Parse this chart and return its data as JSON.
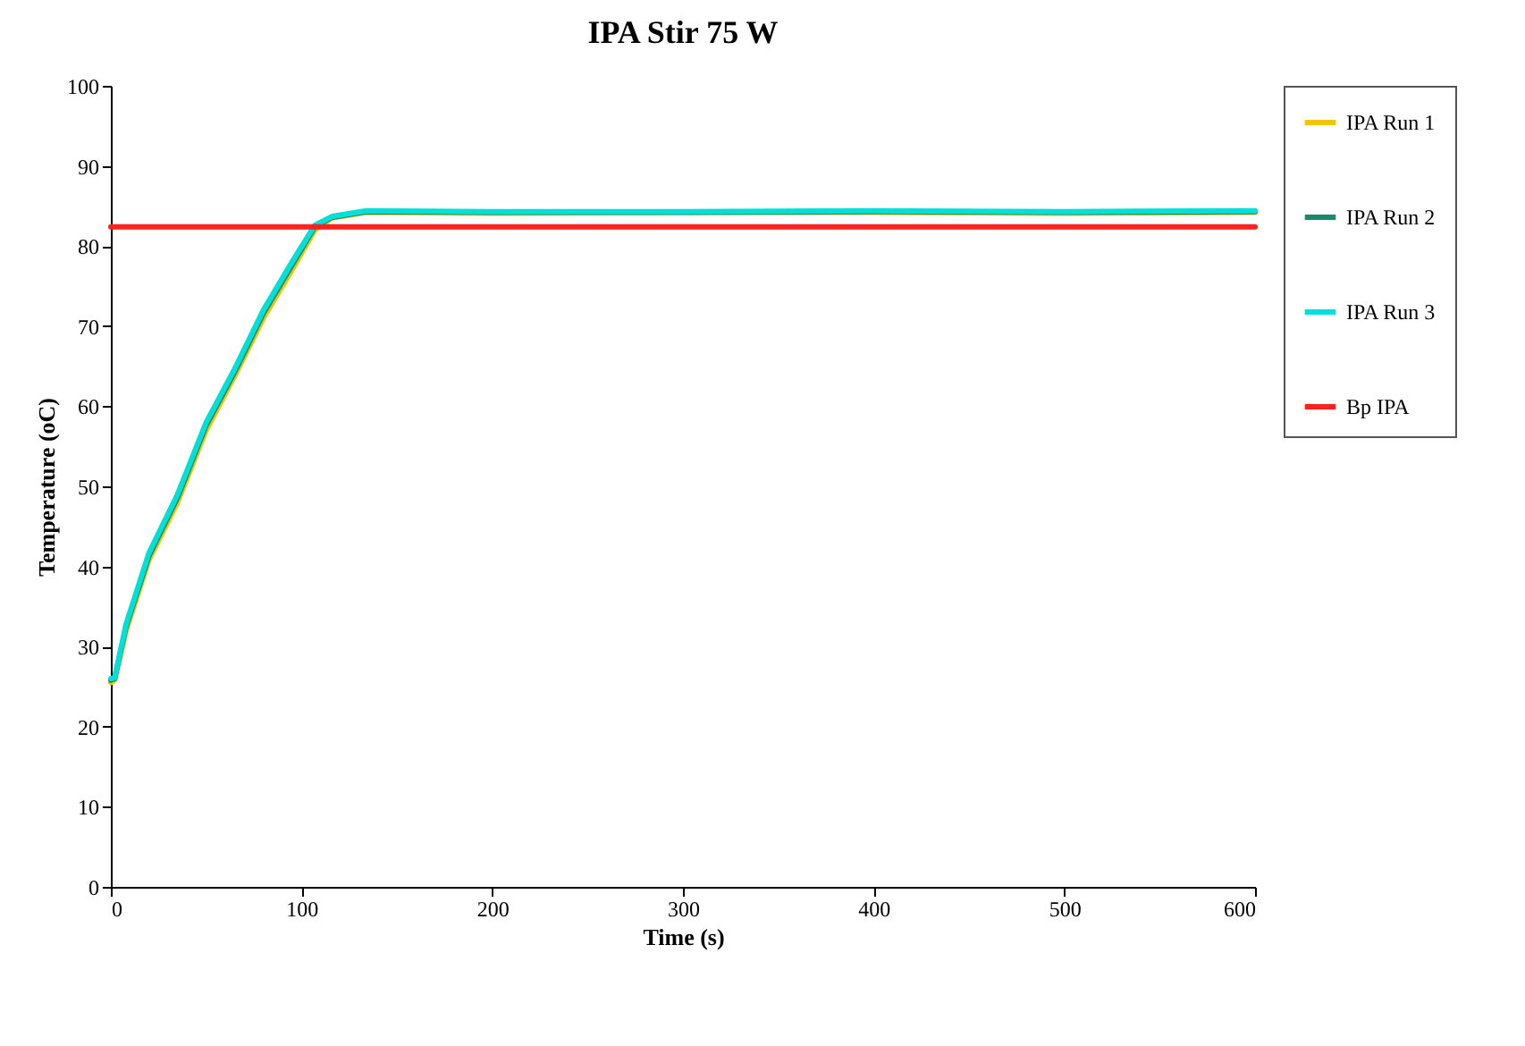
{
  "chart_data": {
    "type": "line",
    "title": "IPA Stir 75 W",
    "xlabel": "Time (s)",
    "ylabel": "Temperature (oC)",
    "x": [
      0,
      2,
      8,
      20,
      35,
      50,
      65,
      80,
      95,
      107,
      116,
      134,
      200,
      300,
      400,
      500,
      600
    ],
    "series": [
      {
        "name": "IPA Run 1",
        "color": "#f5c400",
        "values": [
          25.5,
          25.8,
          32,
          40.8,
          48,
          57,
          63.8,
          71,
          77,
          82,
          83.5,
          84.2,
          84.1,
          84.2,
          84.2,
          84.1,
          84.2
        ]
      },
      {
        "name": "IPA Run 2",
        "color": "#1a8a6a",
        "values": [
          25.8,
          26,
          32.5,
          41.3,
          48.6,
          57.6,
          64.3,
          71.6,
          77.6,
          82.4,
          83.6,
          84.3,
          84.2,
          84.2,
          84.3,
          84.2,
          84.3
        ]
      },
      {
        "name": "IPA Run 3",
        "color": "#00e0d8",
        "values": [
          26,
          26.1,
          32.8,
          41.7,
          49,
          58,
          64.7,
          72,
          78,
          82.6,
          83.7,
          84.4,
          84.3,
          84.3,
          84.4,
          84.3,
          84.4
        ]
      },
      {
        "name": "Bp IPA",
        "color": "#ff2020",
        "x": [
          0,
          600
        ],
        "values": [
          82.4,
          82.4
        ]
      }
    ],
    "xlim": [
      0,
      600
    ],
    "xticks": [
      0,
      100,
      200,
      300,
      400,
      500,
      600
    ],
    "ylim": [
      0,
      100
    ],
    "yticks": [
      0,
      10,
      20,
      30,
      40,
      50,
      60,
      70,
      80,
      90,
      100
    ],
    "grid": false,
    "legend": "right",
    "marker": "none",
    "line_style": "solid"
  }
}
